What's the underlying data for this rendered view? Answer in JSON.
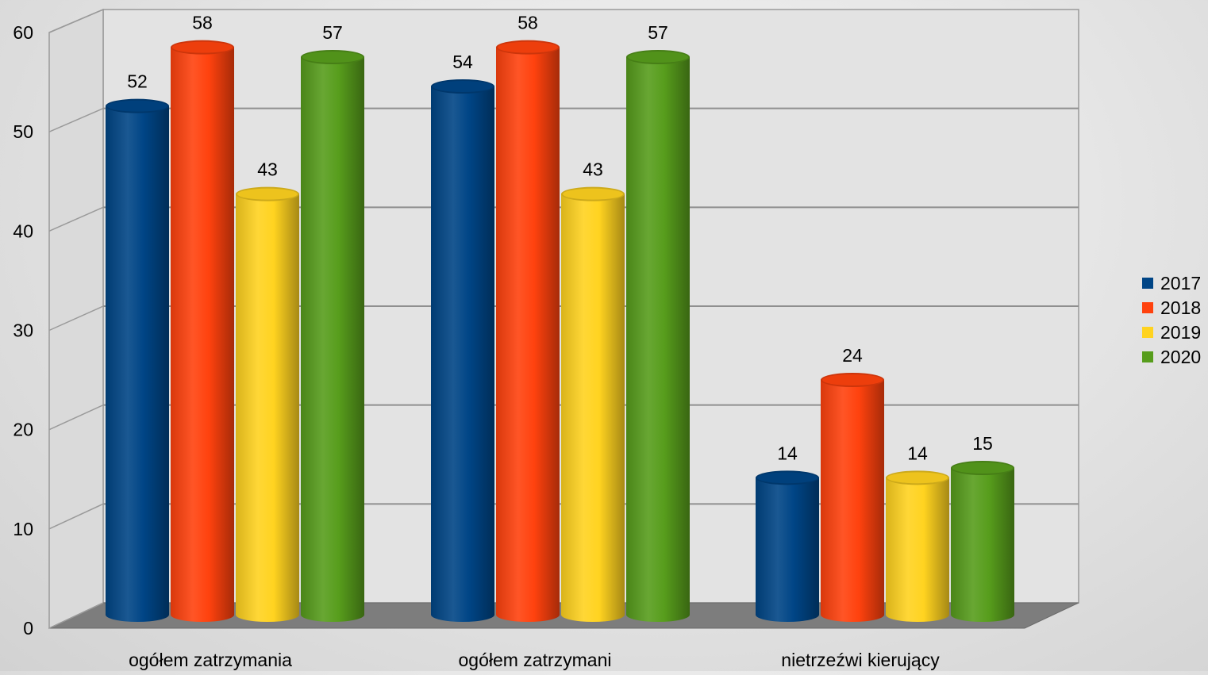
{
  "chart_data": {
    "type": "bar",
    "categories": [
      "ogółem zatrzymania",
      "ogółem zatrzymani",
      "nietrzeźwi kierujący"
    ],
    "series": [
      {
        "name": "2017",
        "color": "#004586",
        "values": [
          52,
          54,
          14
        ]
      },
      {
        "name": "2018",
        "color": "#ff420e",
        "values": [
          58,
          58,
          24
        ]
      },
      {
        "name": "2019",
        "color": "#ffd320",
        "values": [
          43,
          43,
          14
        ]
      },
      {
        "name": "2020",
        "color": "#579d1c",
        "values": [
          57,
          57,
          15
        ]
      }
    ],
    "ylim": [
      0,
      60
    ],
    "yticks": [
      "0",
      "10",
      "20",
      "30",
      "40",
      "50",
      "60"
    ],
    "grid": true,
    "legend_position": "right",
    "style": "3d-cylinder"
  }
}
